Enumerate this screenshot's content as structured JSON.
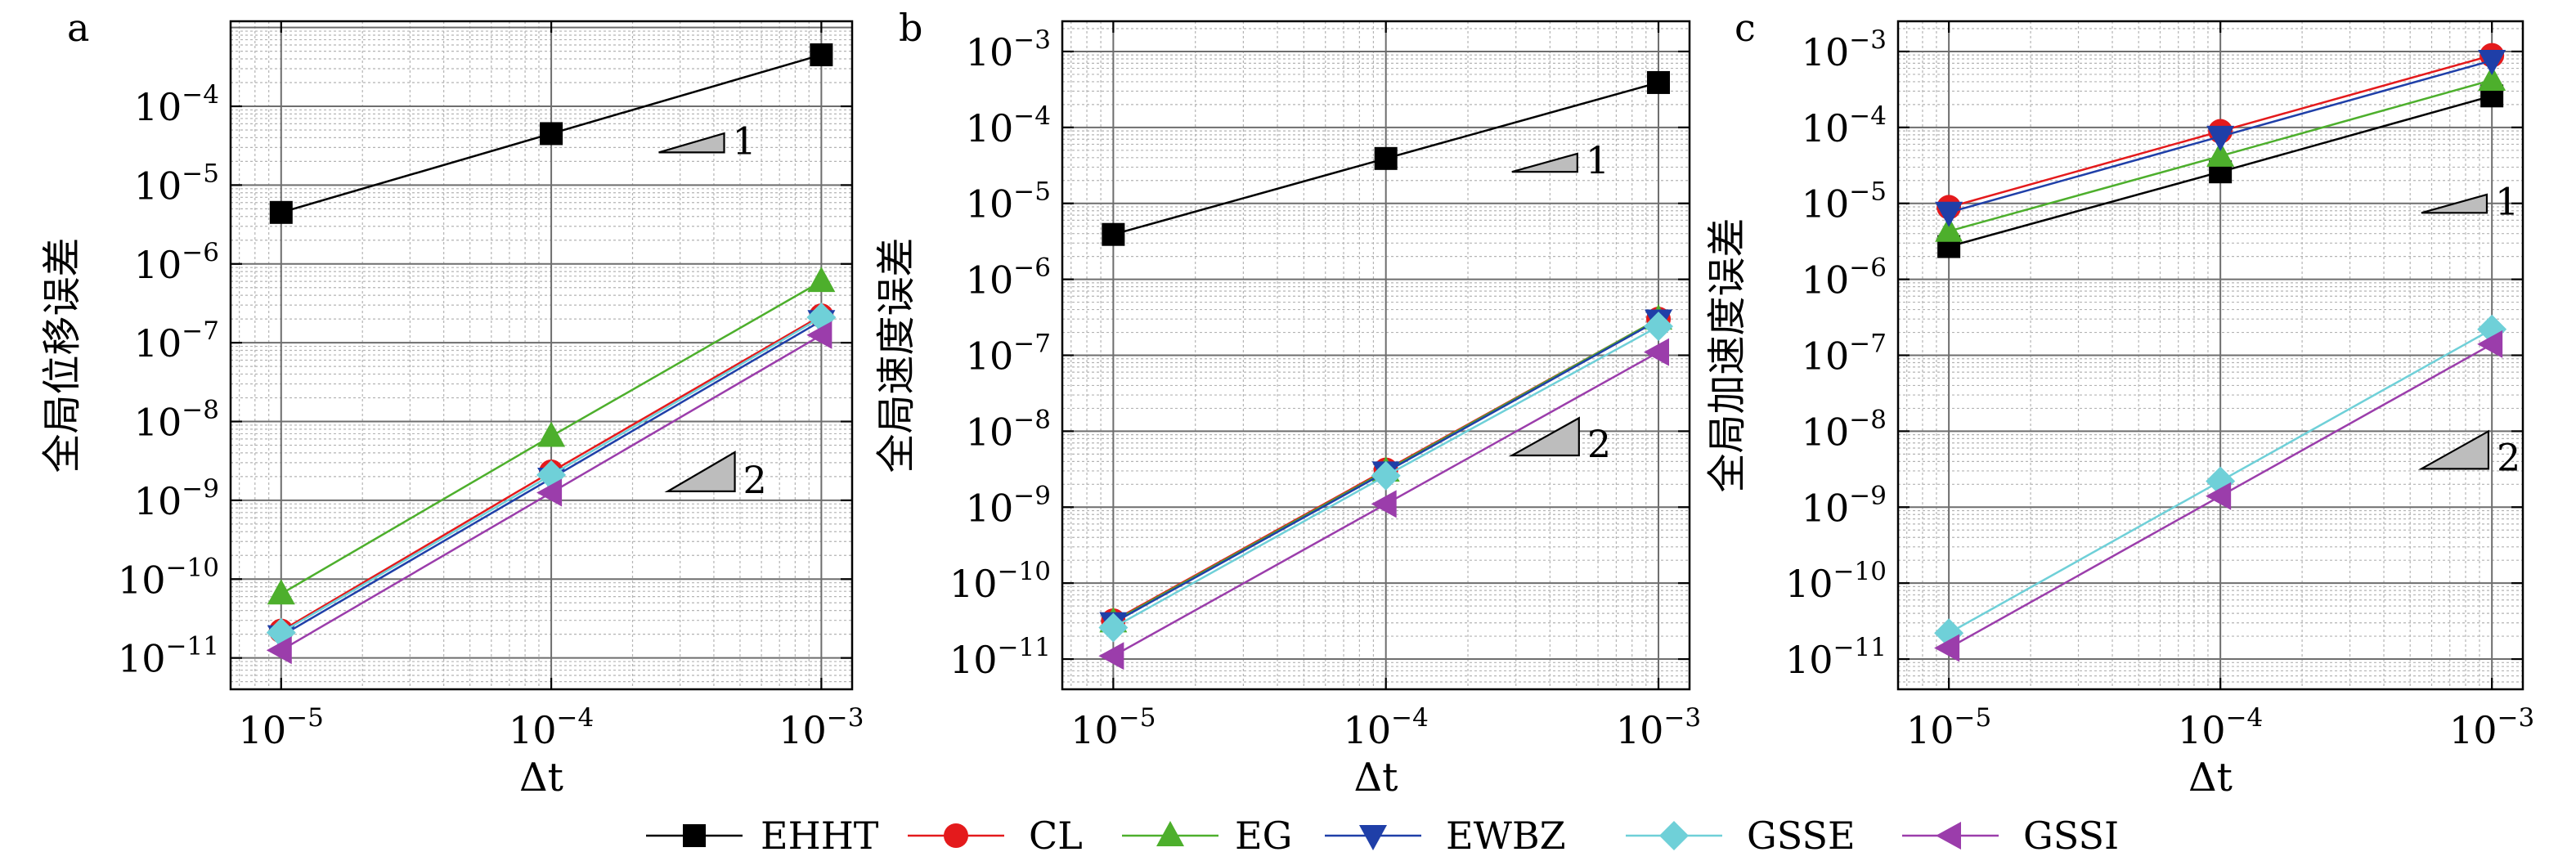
{
  "legend": {
    "placement": "bottom-center",
    "entries": [
      {
        "name": "EHHT",
        "color": "#000000",
        "marker": "square"
      },
      {
        "name": "CL",
        "color": "#e41a1c",
        "marker": "circle"
      },
      {
        "name": "EG",
        "color": "#4daf2c",
        "marker": "triangle-up"
      },
      {
        "name": "EWBZ",
        "color": "#1f3fa8",
        "marker": "triangle-down"
      },
      {
        "name": "GSSE",
        "color": "#6fd0d8",
        "marker": "diamond"
      },
      {
        "name": "GSSI",
        "color": "#9b3dab",
        "marker": "triangle-left"
      }
    ]
  },
  "chart_data": [
    {
      "panel": "a",
      "type": "line",
      "xscale": "log",
      "yscale": "log",
      "xlabel": "Δt",
      "ylabel": "全局位移误差",
      "xlim": [
        6.5e-06,
        0.0013
      ],
      "ylim": [
        4e-12,
        0.0012
      ],
      "x": [
        1e-05,
        0.0001,
        0.001
      ],
      "x_ticks": [
        {
          "value": 1e-05,
          "mant": "10",
          "exp": "−5"
        },
        {
          "value": 0.0001,
          "mant": "10",
          "exp": "−4"
        },
        {
          "value": 0.001,
          "mant": "10",
          "exp": "−3"
        }
      ],
      "y_ticks": [
        {
          "value": 1e-11,
          "mant": "10",
          "exp": "−11"
        },
        {
          "value": 1e-10,
          "mant": "10",
          "exp": "−10"
        },
        {
          "value": 1e-09,
          "mant": "10",
          "exp": "−9"
        },
        {
          "value": 1e-08,
          "mant": "10",
          "exp": "−8"
        },
        {
          "value": 1e-07,
          "mant": "10",
          "exp": "−7"
        },
        {
          "value": 1e-06,
          "mant": "10",
          "exp": "−6"
        },
        {
          "value": 1e-05,
          "mant": "10",
          "exp": "−5"
        },
        {
          "value": 0.0001,
          "mant": "10",
          "exp": "−4"
        }
      ],
      "grid": true,
      "series": [
        {
          "name": "EHHT",
          "values": [
            4.5e-06,
            4.5e-05,
            0.00045
          ]
        },
        {
          "name": "CL",
          "values": [
            2.2e-11,
            2.3e-09,
            2.2e-07
          ]
        },
        {
          "name": "EG",
          "values": [
            6.5e-11,
            6.5e-09,
            6e-07
          ]
        },
        {
          "name": "EWBZ",
          "values": [
            1.9e-11,
            1.9e-09,
            1.9e-07
          ]
        },
        {
          "name": "GSSE",
          "values": [
            2.1e-11,
            2.1e-09,
            2.1e-07
          ]
        },
        {
          "name": "GSSI",
          "values": [
            1.25e-11,
            1.25e-09,
            1.25e-07
          ]
        }
      ],
      "slope_markers": [
        {
          "label": "1",
          "x": 0.00025,
          "y": 2.6e-05,
          "slope": 1
        },
        {
          "label": "2",
          "x": 0.00027,
          "y": 1.3e-09,
          "slope": 2
        }
      ]
    },
    {
      "panel": "b",
      "type": "line",
      "xscale": "log",
      "yscale": "log",
      "xlabel": "Δt",
      "ylabel": "全局速度误差",
      "xlim": [
        6.5e-06,
        0.0013
      ],
      "ylim": [
        4e-12,
        0.0025
      ],
      "x": [
        1e-05,
        0.0001,
        0.001
      ],
      "x_ticks": [
        {
          "value": 1e-05,
          "mant": "10",
          "exp": "−5"
        },
        {
          "value": 0.0001,
          "mant": "10",
          "exp": "−4"
        },
        {
          "value": 0.001,
          "mant": "10",
          "exp": "−3"
        }
      ],
      "y_ticks": [
        {
          "value": 1e-11,
          "mant": "10",
          "exp": "−11"
        },
        {
          "value": 1e-10,
          "mant": "10",
          "exp": "−10"
        },
        {
          "value": 1e-09,
          "mant": "10",
          "exp": "−9"
        },
        {
          "value": 1e-08,
          "mant": "10",
          "exp": "−8"
        },
        {
          "value": 1e-07,
          "mant": "10",
          "exp": "−7"
        },
        {
          "value": 1e-06,
          "mant": "10",
          "exp": "−6"
        },
        {
          "value": 1e-05,
          "mant": "10",
          "exp": "−5"
        },
        {
          "value": 0.0001,
          "mant": "10",
          "exp": "−4"
        },
        {
          "value": 0.001,
          "mant": "10",
          "exp": "−3"
        }
      ],
      "grid": true,
      "series": [
        {
          "name": "EHHT",
          "values": [
            3.9e-06,
            3.9e-05,
            0.00039
          ]
        },
        {
          "name": "CL",
          "values": [
            3.2e-11,
            3.1e-09,
            3e-07
          ]
        },
        {
          "name": "EG",
          "values": [
            3.1e-11,
            3e-09,
            3e-07
          ]
        },
        {
          "name": "EWBZ",
          "values": [
            3e-11,
            2.9e-09,
            2.9e-07
          ]
        },
        {
          "name": "GSSE",
          "values": [
            2.6e-11,
            2.6e-09,
            2.4e-07
          ]
        },
        {
          "name": "GSSI",
          "values": [
            1.1e-11,
            1.1e-09,
            1.1e-07
          ]
        }
      ],
      "slope_markers": [
        {
          "label": "1",
          "x": 0.00029,
          "y": 2.6e-05,
          "slope": 1
        },
        {
          "label": "2",
          "x": 0.00029,
          "y": 4.8e-09,
          "slope": 2
        }
      ]
    },
    {
      "panel": "c",
      "type": "line",
      "xscale": "log",
      "yscale": "log",
      "xlabel": "Δt",
      "ylabel": "全局加速度误差",
      "xlim": [
        6.5e-06,
        0.0013
      ],
      "ylim": [
        4e-12,
        0.0025
      ],
      "x": [
        1e-05,
        0.0001,
        0.001
      ],
      "x_ticks": [
        {
          "value": 1e-05,
          "mant": "10",
          "exp": "−5"
        },
        {
          "value": 0.0001,
          "mant": "10",
          "exp": "−4"
        },
        {
          "value": 0.001,
          "mant": "10",
          "exp": "−3"
        }
      ],
      "y_ticks": [
        {
          "value": 1e-11,
          "mant": "10",
          "exp": "−11"
        },
        {
          "value": 1e-10,
          "mant": "10",
          "exp": "−10"
        },
        {
          "value": 1e-09,
          "mant": "10",
          "exp": "−9"
        },
        {
          "value": 1e-08,
          "mant": "10",
          "exp": "−8"
        },
        {
          "value": 1e-07,
          "mant": "10",
          "exp": "−7"
        },
        {
          "value": 1e-06,
          "mant": "10",
          "exp": "−6"
        },
        {
          "value": 1e-05,
          "mant": "10",
          "exp": "−5"
        },
        {
          "value": 0.0001,
          "mant": "10",
          "exp": "−4"
        },
        {
          "value": 0.001,
          "mant": "10",
          "exp": "−3"
        }
      ],
      "grid": true,
      "series": [
        {
          "name": "EHHT",
          "values": [
            2.7e-06,
            2.6e-05,
            0.00026
          ]
        },
        {
          "name": "CL",
          "values": [
            8.9e-06,
            8.9e-05,
            0.00089
          ]
        },
        {
          "name": "EG",
          "values": [
            4.3e-06,
            4.2e-05,
            0.00042
          ]
        },
        {
          "name": "EWBZ",
          "values": [
            7.6e-06,
            7.6e-05,
            0.00076
          ]
        },
        {
          "name": "GSSE",
          "values": [
            2.2e-11,
            2.2e-09,
            2.2e-07
          ]
        },
        {
          "name": "GSSI",
          "values": [
            1.4e-11,
            1.4e-09,
            1.4e-07
          ]
        }
      ],
      "slope_markers": [
        {
          "label": "1",
          "x": 0.00055,
          "y": 7.5e-06,
          "slope": 1
        },
        {
          "label": "2",
          "x": 0.00055,
          "y": 3.2e-09,
          "slope": 2
        }
      ]
    }
  ]
}
